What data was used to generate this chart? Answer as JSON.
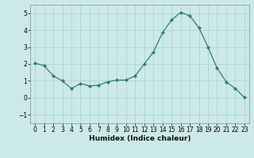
{
  "x": [
    0,
    1,
    2,
    3,
    4,
    5,
    6,
    7,
    8,
    9,
    10,
    11,
    12,
    13,
    14,
    15,
    16,
    17,
    18,
    19,
    20,
    21,
    22,
    23
  ],
  "y": [
    2.05,
    1.9,
    1.3,
    1.0,
    0.55,
    0.85,
    0.7,
    0.75,
    0.95,
    1.05,
    1.05,
    1.3,
    2.0,
    2.7,
    3.85,
    4.6,
    5.05,
    4.85,
    4.15,
    3.0,
    1.75,
    0.95,
    0.55,
    0.02
  ],
  "line_color": "#2e7d6e",
  "marker": "D",
  "marker_size": 2.2,
  "bg_color": "#cce9e9",
  "grid_color": "#aacfcf",
  "xlabel": "Humidex (Indice chaleur)",
  "ylim": [
    -1.5,
    5.5
  ],
  "xlim": [
    -0.5,
    23.5
  ],
  "yticks": [
    -1,
    0,
    1,
    2,
    3,
    4,
    5
  ],
  "xticks": [
    0,
    1,
    2,
    3,
    4,
    5,
    6,
    7,
    8,
    9,
    10,
    11,
    12,
    13,
    14,
    15,
    16,
    17,
    18,
    19,
    20,
    21,
    22,
    23
  ],
  "label_fontsize": 6.5,
  "tick_fontsize": 5.5
}
